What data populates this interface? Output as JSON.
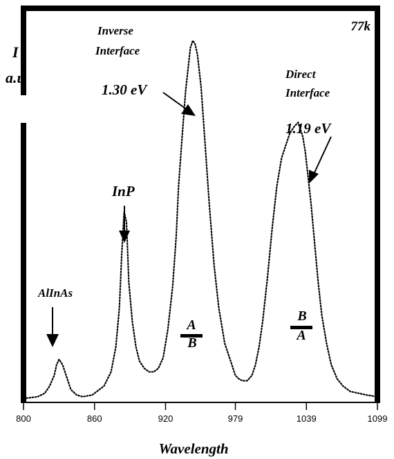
{
  "chart_data": {
    "type": "line",
    "xlabel": "Wavelength",
    "ylabel_line1": "I",
    "ylabel_line2": "a.u",
    "corner_label": "77k",
    "xlim": [
      800,
      1099
    ],
    "ylim": [
      0,
      100
    ],
    "x_ticks": [
      "800",
      "860",
      "920",
      "979",
      "1039",
      "1099"
    ],
    "x_tick_values": [
      800,
      860,
      920,
      979,
      1039,
      1099
    ],
    "series": [
      {
        "line_style": "dotted",
        "color": "#000000",
        "x": [
          800,
          812,
          818,
          822,
          826,
          828,
          830,
          833,
          837,
          840,
          845,
          850,
          858,
          868,
          874,
          878,
          881,
          883,
          885,
          887,
          889,
          892,
          895,
          898,
          902,
          906,
          910,
          914,
          918,
          922,
          926,
          929,
          931,
          934,
          937,
          939,
          941,
          943,
          945,
          947,
          950,
          953,
          957,
          961,
          965,
          970,
          975,
          979,
          982,
          985,
          989,
          993,
          996,
          999,
          1002,
          1006,
          1010,
          1014,
          1018,
          1022,
          1025,
          1029,
          1032,
          1034,
          1036,
          1038,
          1040,
          1043,
          1046,
          1049,
          1052,
          1056,
          1060,
          1065,
          1070,
          1076,
          1083,
          1090,
          1099
        ],
        "y": [
          0.5,
          1,
          2,
          4,
          7,
          10,
          11.5,
          10,
          6,
          3,
          1.5,
          1,
          1.5,
          4,
          8,
          15,
          26,
          41,
          53,
          50,
          33,
          22,
          15,
          11,
          9,
          8,
          8,
          9,
          12,
          20,
          32,
          46,
          60,
          74,
          87,
          93,
          99,
          101,
          100,
          97,
          88,
          74,
          55,
          38,
          26,
          16,
          11,
          7,
          6,
          5.5,
          5.5,
          7,
          10,
          15,
          22,
          34,
          48,
          60,
          68,
          72,
          75,
          77,
          78,
          76,
          74,
          70,
          64,
          55,
          44,
          33,
          24,
          16,
          10,
          6,
          4,
          2.5,
          2,
          1.5,
          1
        ]
      }
    ],
    "annotations": [
      {
        "text": "Inverse",
        "style": "bold-italic"
      },
      {
        "text": "Interface",
        "style": "bold-italic"
      },
      {
        "text": "1.30 eV",
        "style": "bold-italic"
      },
      {
        "text": "Direct",
        "style": "bold-italic"
      },
      {
        "text": "Interface",
        "style": "bold-italic"
      },
      {
        "text": "1.19 eV",
        "style": "bold-italic"
      },
      {
        "text": "InP",
        "style": "bold-italic"
      },
      {
        "text": "AlInAs",
        "style": "bold-italic"
      }
    ],
    "fractions": [
      {
        "top": "A",
        "bottom": "B",
        "top_color": "#1f5fd1",
        "bottom_color": "#2a9d3a"
      },
      {
        "top": "B",
        "bottom": "A",
        "top_color": "#2a9d3a",
        "bottom_color": "#1f5fd1"
      }
    ]
  }
}
